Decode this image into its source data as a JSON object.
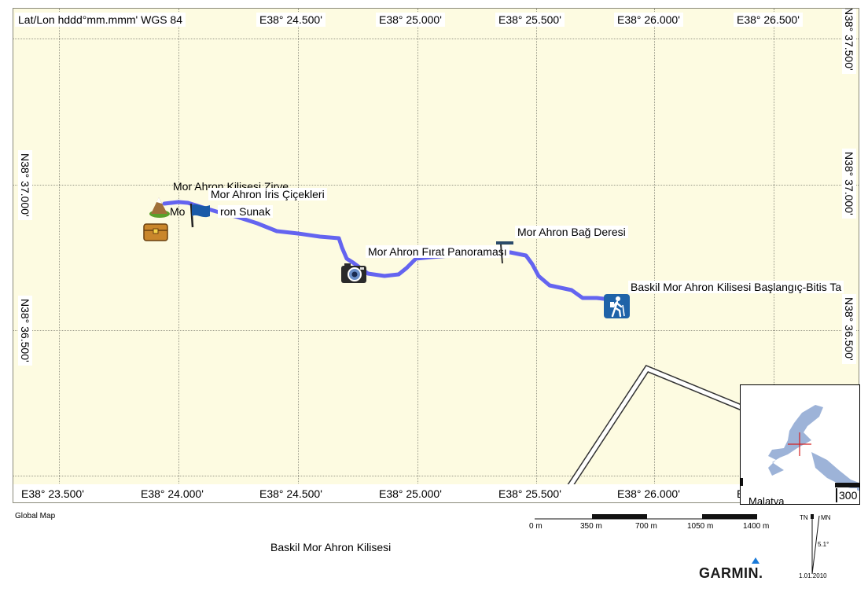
{
  "map": {
    "coord_format": "Lat/Lon hddd°mm.mmm' WGS 84",
    "top_lon_labels": [
      "E38° 24.500'",
      "E38° 25.000'",
      "E38° 25.500'",
      "E38° 26.000'",
      "E38° 26.500'"
    ],
    "bottom_lon_labels": [
      "E38° 23.500'",
      "E38° 24.000'",
      "E38° 24.500'",
      "E38° 25.000'",
      "E38° 25.500'",
      "E38° 26.000'",
      "E"
    ],
    "left_lat_labels": [
      "N38° 37.000'",
      "N38° 36.500'"
    ],
    "right_lat_labels": [
      "N38° 37.500'",
      "N38° 37.000'",
      "N38° 36.500'"
    ],
    "waypoints": {
      "zirve": "Mor Ahron Kilisesi Zirve",
      "iris": "Mor Ahron İris Çiçekleri",
      "sunak_prefix": "Mo",
      "sunak_suffix": "ron Sunak",
      "fırat": "Mor Ahron Fırat Panoraması",
      "bag": "Mor Ahron Bağ Deresi",
      "baslangic": "Baskil Mor Ahron Kilisesi Başlangıç-Bitis Ta"
    },
    "icons": [
      "summit-icon",
      "flag-icon",
      "treasure-chest-icon",
      "camera-icon",
      "hiker-icon"
    ],
    "colors": {
      "track": "#6464f0",
      "background": "#fdfbe1",
      "lake": "#9db3d8"
    }
  },
  "inset": {
    "place": "Malatya",
    "scale_text": "300"
  },
  "footer": {
    "global_map": "Global Map",
    "title": "Baskil Mor Ahron Kilisesi",
    "scale_labels": [
      "0 m",
      "350 m",
      "700 m",
      "1050 m",
      "1400 m"
    ],
    "north_tn": "TN",
    "north_mn": "MN",
    "declination": "5.1°",
    "date": "1.01.2010",
    "brand": "GARMIN."
  }
}
